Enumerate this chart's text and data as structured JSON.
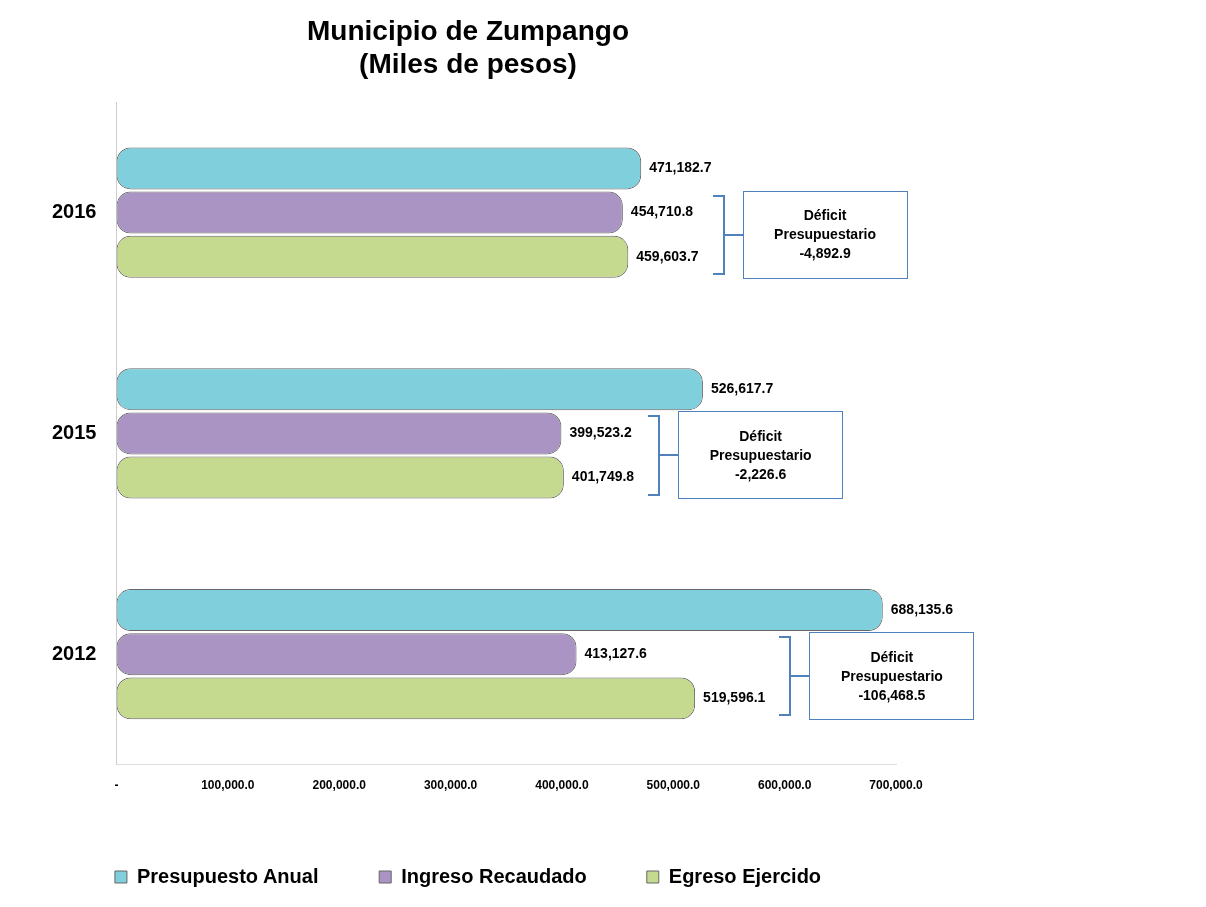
{
  "chart_data": {
    "type": "bar",
    "orientation": "horizontal",
    "title": "Municipio de Zumpango\n(Miles de pesos)",
    "categories": [
      "2016",
      "2015",
      "2012"
    ],
    "series": [
      {
        "name": "Presupuesto Anual",
        "color": "#7fcfdc",
        "values": [
          471182.7,
          526617.7,
          688135.6
        ],
        "value_labels": [
          "471,182.7",
          "526,617.7",
          "688,135.6"
        ]
      },
      {
        "name": "Ingreso Recaudado",
        "color": "#a994c4",
        "values": [
          454710.8,
          399523.2,
          413127.6
        ],
        "value_labels": [
          "454,710.8",
          "399,523.2",
          "413,127.6"
        ]
      },
      {
        "name": "Egreso Ejercido",
        "color": "#c5d98f",
        "values": [
          459603.7,
          401749.8,
          519596.1
        ],
        "value_labels": [
          "459,603.7",
          "401,749.8",
          "519,596.1"
        ]
      }
    ],
    "xlim": [
      0,
      700000
    ],
    "xticks": [
      {
        "value": 0,
        "label": "-"
      },
      {
        "value": 100000,
        "label": "100,000.0"
      },
      {
        "value": 200000,
        "label": "200,000.0"
      },
      {
        "value": 300000,
        "label": "300,000.0"
      },
      {
        "value": 400000,
        "label": "400,000.0"
      },
      {
        "value": 500000,
        "label": "500,000.0"
      },
      {
        "value": 600000,
        "label": "600,000.0"
      },
      {
        "value": 700000,
        "label": "700,000.0"
      }
    ],
    "legend": "bottom",
    "grid": false,
    "annotations": [
      "Déficit Presupuestario -4,892.9",
      "Déficit Presupuestario -2,226.6",
      "Déficit Presupuestario -106,468.5"
    ]
  }
}
